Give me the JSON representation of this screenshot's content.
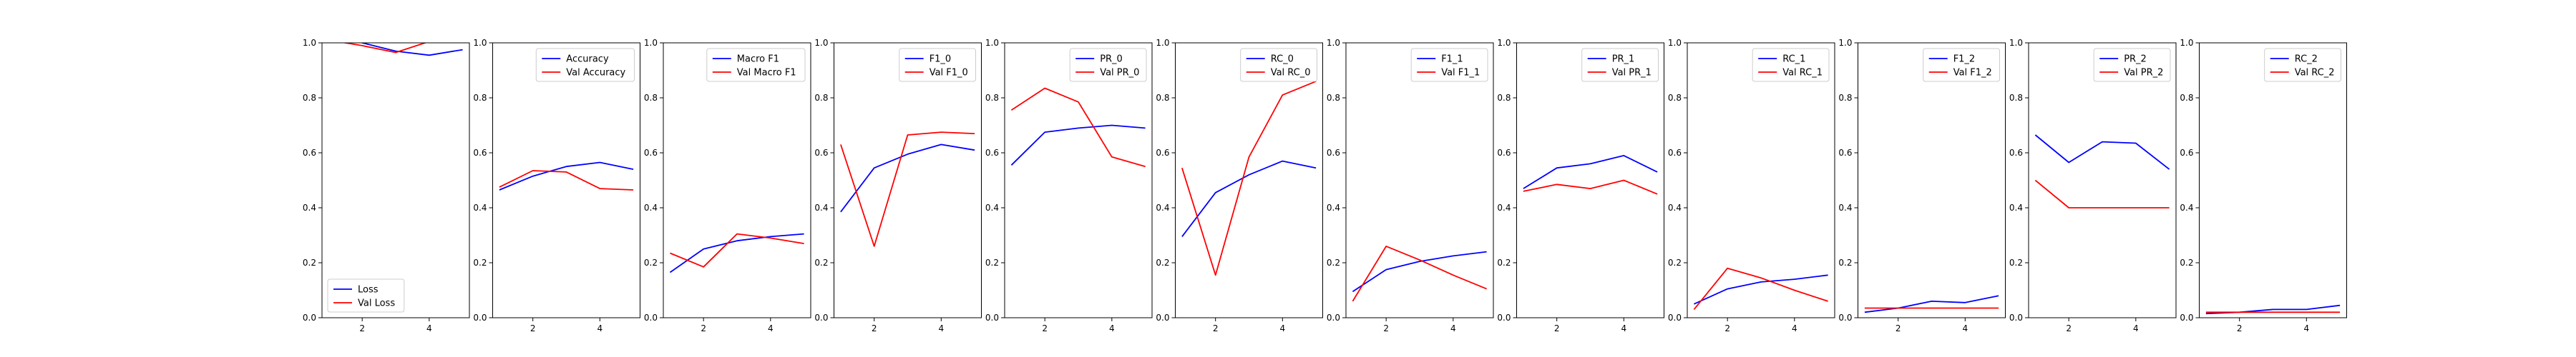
{
  "colors": {
    "train": "#0000ff",
    "val": "#ff0000",
    "axis": "#000000",
    "legend_border": "#cccccc"
  },
  "shared_axes": {
    "xlim": [
      0.8,
      5.2
    ],
    "ylim": [
      0.0,
      1.0
    ],
    "xticks": [
      2,
      4
    ],
    "yticks": [
      0.0,
      0.2,
      0.4,
      0.6,
      0.8,
      1.0
    ],
    "grid": false
  },
  "chart_data": [
    {
      "type": "line",
      "x": [
        1,
        2,
        3,
        4,
        5
      ],
      "legend_position": "lower-left",
      "series": [
        {
          "name": "Loss",
          "color": "#0000ff",
          "values": [
            1.08,
            1.0,
            0.97,
            0.955,
            0.975
          ]
        },
        {
          "name": "Val Loss",
          "color": "#ff0000",
          "values": [
            1.01,
            0.99,
            0.965,
            1.005,
            1.06
          ]
        }
      ]
    },
    {
      "type": "line",
      "x": [
        1,
        2,
        3,
        4,
        5
      ],
      "legend_position": "upper-right",
      "series": [
        {
          "name": "Accuracy",
          "color": "#0000ff",
          "values": [
            0.465,
            0.515,
            0.55,
            0.565,
            0.54
          ]
        },
        {
          "name": "Val Accuracy",
          "color": "#ff0000",
          "values": [
            0.475,
            0.535,
            0.53,
            0.47,
            0.465
          ]
        }
      ]
    },
    {
      "type": "line",
      "x": [
        1,
        2,
        3,
        4,
        5
      ],
      "legend_position": "upper-right",
      "series": [
        {
          "name": "Macro F1",
          "color": "#0000ff",
          "values": [
            0.165,
            0.25,
            0.28,
            0.295,
            0.305
          ]
        },
        {
          "name": "Val Macro F1",
          "color": "#ff0000",
          "values": [
            0.235,
            0.185,
            0.305,
            0.29,
            0.27
          ]
        }
      ]
    },
    {
      "type": "line",
      "x": [
        1,
        2,
        3,
        4,
        5
      ],
      "legend_position": "upper-right",
      "series": [
        {
          "name": "F1_0",
          "color": "#0000ff",
          "values": [
            0.385,
            0.545,
            0.595,
            0.63,
            0.61
          ]
        },
        {
          "name": "Val F1_0",
          "color": "#ff0000",
          "values": [
            0.63,
            0.26,
            0.665,
            0.675,
            0.67
          ]
        }
      ]
    },
    {
      "type": "line",
      "x": [
        1,
        2,
        3,
        4,
        5
      ],
      "legend_position": "upper-right",
      "series": [
        {
          "name": "PR_0",
          "color": "#0000ff",
          "values": [
            0.555,
            0.675,
            0.69,
            0.7,
            0.69
          ]
        },
        {
          "name": "Val PR_0",
          "color": "#ff0000",
          "values": [
            0.755,
            0.835,
            0.785,
            0.585,
            0.55
          ]
        }
      ]
    },
    {
      "type": "line",
      "x": [
        1,
        2,
        3,
        4,
        5
      ],
      "legend_position": "upper-right",
      "series": [
        {
          "name": "RC_0",
          "color": "#0000ff",
          "values": [
            0.295,
            0.455,
            0.52,
            0.57,
            0.545
          ]
        },
        {
          "name": "Val RC_0",
          "color": "#ff0000",
          "values": [
            0.545,
            0.155,
            0.585,
            0.81,
            0.86
          ]
        }
      ]
    },
    {
      "type": "line",
      "x": [
        1,
        2,
        3,
        4,
        5
      ],
      "legend_position": "upper-right",
      "series": [
        {
          "name": "F1_1",
          "color": "#0000ff",
          "values": [
            0.095,
            0.175,
            0.205,
            0.225,
            0.24
          ]
        },
        {
          "name": "Val F1_1",
          "color": "#ff0000",
          "values": [
            0.06,
            0.26,
            0.21,
            0.155,
            0.105
          ]
        }
      ]
    },
    {
      "type": "line",
      "x": [
        1,
        2,
        3,
        4,
        5
      ],
      "legend_position": "upper-right",
      "series": [
        {
          "name": "PR_1",
          "color": "#0000ff",
          "values": [
            0.47,
            0.545,
            0.56,
            0.59,
            0.53
          ]
        },
        {
          "name": "Val PR_1",
          "color": "#ff0000",
          "values": [
            0.46,
            0.485,
            0.47,
            0.5,
            0.45
          ]
        }
      ]
    },
    {
      "type": "line",
      "x": [
        1,
        2,
        3,
        4,
        5
      ],
      "legend_position": "upper-right",
      "series": [
        {
          "name": "RC_1",
          "color": "#0000ff",
          "values": [
            0.05,
            0.105,
            0.13,
            0.14,
            0.155
          ]
        },
        {
          "name": "Val RC_1",
          "color": "#ff0000",
          "values": [
            0.03,
            0.18,
            0.145,
            0.1,
            0.06
          ]
        }
      ]
    },
    {
      "type": "line",
      "x": [
        1,
        2,
        3,
        4,
        5
      ],
      "legend_position": "upper-right",
      "series": [
        {
          "name": "F1_2",
          "color": "#0000ff",
          "values": [
            0.02,
            0.035,
            0.06,
            0.055,
            0.08
          ]
        },
        {
          "name": "Val F1_2",
          "color": "#ff0000",
          "values": [
            0.035,
            0.035,
            0.035,
            0.035,
            0.035
          ]
        }
      ]
    },
    {
      "type": "line",
      "x": [
        1,
        2,
        3,
        4,
        5
      ],
      "legend_position": "upper-right",
      "series": [
        {
          "name": "PR_2",
          "color": "#0000ff",
          "values": [
            0.665,
            0.565,
            0.64,
            0.635,
            0.54
          ]
        },
        {
          "name": "Val PR_2",
          "color": "#ff0000",
          "values": [
            0.5,
            0.4,
            0.4,
            0.4,
            0.4
          ]
        }
      ]
    },
    {
      "type": "line",
      "x": [
        1,
        2,
        3,
        4,
        5
      ],
      "legend_position": "upper-right",
      "series": [
        {
          "name": "RC_2",
          "color": "#0000ff",
          "values": [
            0.015,
            0.02,
            0.03,
            0.03,
            0.045
          ]
        },
        {
          "name": "Val RC_2",
          "color": "#ff0000",
          "values": [
            0.02,
            0.02,
            0.02,
            0.02,
            0.02
          ]
        }
      ]
    }
  ]
}
